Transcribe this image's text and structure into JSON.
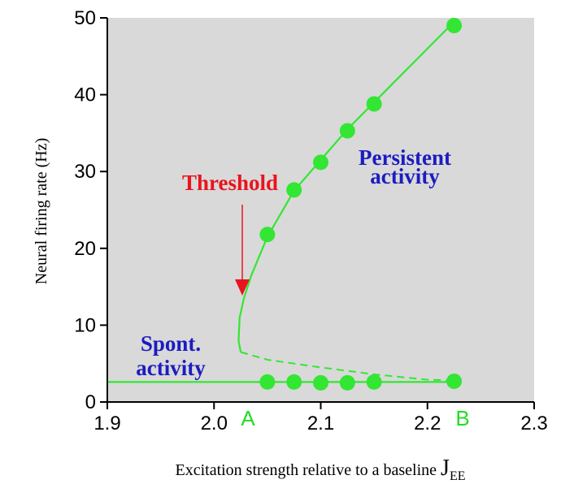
{
  "chart_data": {
    "type": "line",
    "ylabel": "Neural firing rate (Hz)",
    "xlabel": "Excitation strength relative to a baseline ",
    "xlabel_symbol": "J",
    "xlabel_subscript": "EE",
    "xlim": [
      1.9,
      2.3
    ],
    "ylim": [
      0,
      50
    ],
    "x_ticks": [
      {
        "value": 1.9,
        "label": "1.9"
      },
      {
        "value": 2.0,
        "label": "2.0"
      },
      {
        "value": 2.1,
        "label": "2.1"
      },
      {
        "value": 2.2,
        "label": "2.2"
      },
      {
        "value": 2.3,
        "label": "2.3"
      }
    ],
    "y_ticks": [
      {
        "value": 0,
        "label": "0"
      },
      {
        "value": 10,
        "label": "10"
      },
      {
        "value": 20,
        "label": "20"
      },
      {
        "value": 30,
        "label": "30"
      },
      {
        "value": 40,
        "label": "40"
      },
      {
        "value": 50,
        "label": "50"
      }
    ],
    "grid": false,
    "background_color": "#d9d9d9",
    "series": [
      {
        "style": "solid",
        "color": "#33e633",
        "x": [
          2.025,
          2.023,
          2.024,
          2.028,
          2.035,
          2.05,
          2.075,
          2.1,
          2.125,
          2.15,
          2.175,
          2.2,
          2.225
        ],
        "y": [
          6.5,
          8,
          11,
          13.5,
          16.5,
          21.5,
          27.5,
          31.5,
          35.5,
          39,
          42.5,
          46,
          49.5
        ]
      },
      {
        "style": "solid",
        "color": "#33e633",
        "x": [
          1.9,
          2.225
        ],
        "y": [
          2.6,
          2.6
        ]
      },
      {
        "style": "dashed",
        "color": "#33e633",
        "x": [
          2.025,
          2.05,
          2.1,
          2.15,
          2.2,
          2.225
        ],
        "y": [
          6.5,
          5.5,
          4.5,
          3.6,
          2.9,
          2.8
        ]
      },
      {
        "style": "markers",
        "color": "#33e633",
        "x": [
          2.05,
          2.075,
          2.1,
          2.125,
          2.15,
          2.225
        ],
        "y": [
          21.8,
          27.6,
          31.2,
          35.3,
          38.8,
          49
        ]
      },
      {
        "style": "markers",
        "color": "#33e633",
        "x": [
          2.05,
          2.075,
          2.1,
          2.125,
          2.15,
          2.225
        ],
        "y": [
          2.6,
          2.6,
          2.5,
          2.5,
          2.6,
          2.7
        ]
      }
    ],
    "annotations": [
      {
        "text": "Threshold",
        "color": "#e8141e"
      },
      {
        "text": "Persistent",
        "color": "#1c1cc0"
      },
      {
        "text": "activity",
        "color": "#1c1cc0"
      },
      {
        "text": "Spont.",
        "color": "#1c1cc0"
      },
      {
        "text": "activity",
        "color": "#1c1cc0"
      }
    ],
    "markers": [
      {
        "text": "A",
        "x": 2.03,
        "color": "#22dd22"
      },
      {
        "text": "B",
        "x": 2.23,
        "color": "#22dd22"
      }
    ]
  }
}
